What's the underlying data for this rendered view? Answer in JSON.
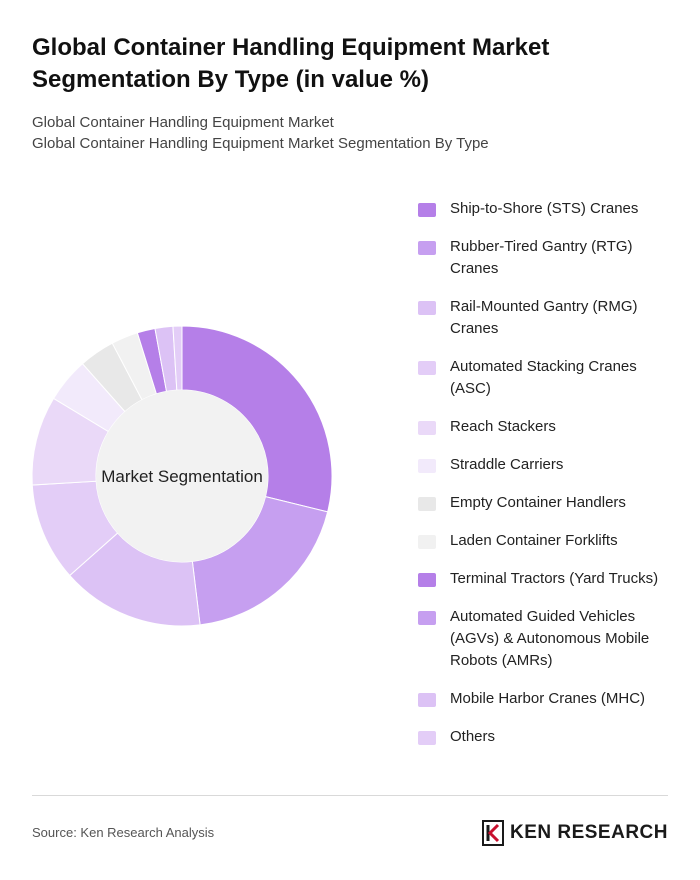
{
  "header": {
    "title": "Global Container Handling Equipment Market Segmentation By Type (in value %)",
    "subtitle_line1": "Global Container Handling Equipment Market",
    "subtitle_line2": "Global Container Handling Equipment Market Segmentation By Type"
  },
  "chart_data": {
    "type": "pie",
    "variant": "donut",
    "center_label": "Market Segmentation",
    "legend_position": "right",
    "categories": [
      "Ship-to-Shore (STS) Cranes",
      "Rubber-Tired Gantry (RTG) Cranes",
      "Rail-Mounted Gantry (RMG) Cranes",
      "Automated Stacking Cranes (ASC)",
      "Reach Stackers",
      "Straddle Carriers",
      "Empty Container Handlers",
      "Laden Container Forklifts",
      "Terminal Tractors (Yard Trucks)",
      "Automated Guided Vehicles (AGVs) & Autonomous Mobile Robots (AMRs)",
      "Mobile Harbor Cranes (MHC)",
      "Others"
    ],
    "values": [
      30,
      20,
      16,
      11,
      10,
      5,
      4,
      3,
      2,
      0,
      2,
      1
    ],
    "colors": [
      "#b57fe8",
      "#c69ff0",
      "#dcc2f5",
      "#e3cdf7",
      "#ead9f8",
      "#f2eafb",
      "#e8e8e8",
      "#f1f1f1",
      "#b57fe8",
      "#c69ff0",
      "#dcc2f5",
      "#e3cdf7"
    ]
  },
  "footer": {
    "source": "Source: Ken Research Analysis",
    "brand": "KEN RESEARCH",
    "brand_logo_icon": "kr-monogram-icon"
  }
}
